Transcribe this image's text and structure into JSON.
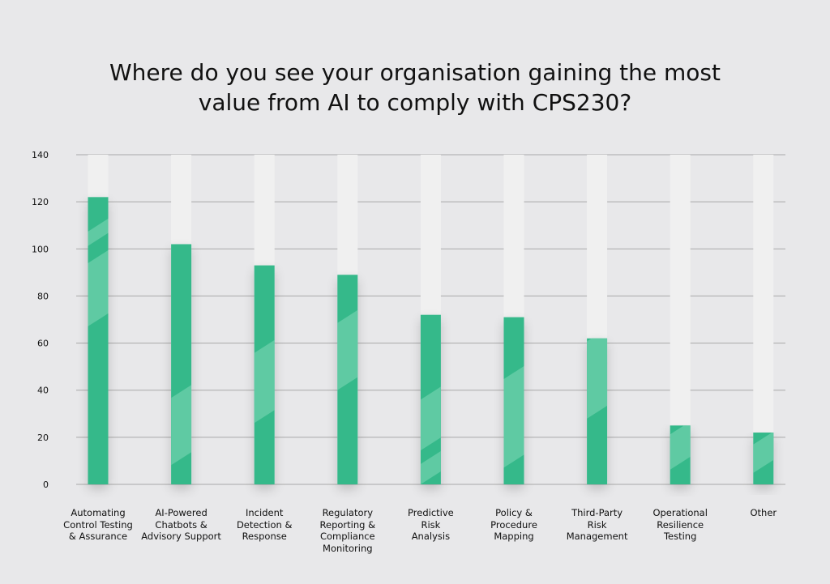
{
  "chart_data": {
    "type": "bar",
    "title": "Where do you see your organisation gaining the most value from AI to comply with CPS230?",
    "title_lines": [
      "Where do you see your organisation gaining the most",
      "value from AI to comply with CPS230?"
    ],
    "categories": [
      "Automating\nControl Testing\n& Assurance",
      "AI-Powered\nChatbots &\nAdvisory Support",
      "Incident\nDetection &\nResponse",
      "Regulatory\nReporting &\nCompliance\nMonitoring",
      "Predictive\nRisk\nAnalysis",
      "Policy &\nProcedure\nMapping",
      "Third-Party\nRisk\nManagement",
      "Operational\nResilience\nTesting",
      "Other"
    ],
    "values": [
      122,
      102,
      93,
      89,
      72,
      71,
      62,
      25,
      22
    ],
    "ylim": [
      0,
      140
    ],
    "yticks": [
      0,
      20,
      40,
      60,
      80,
      100,
      120,
      140
    ],
    "xlabel": "",
    "ylabel": "",
    "grid": true,
    "colors": {
      "bar": "#34b98a",
      "bar_highlight": "#5fcaa3",
      "track": "#f0f0f0",
      "grid": "#a9a9a9",
      "background": "#e8e8ea"
    }
  }
}
